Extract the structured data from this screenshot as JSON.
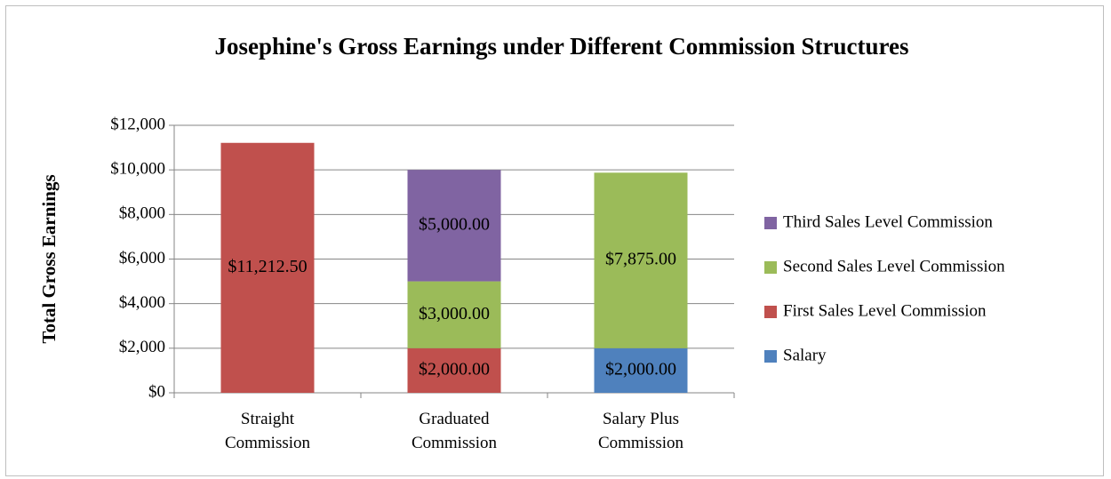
{
  "chart_data": {
    "type": "stacked_bar",
    "title": "Josephine's Gross Earnings under Different Commission Structures",
    "y_label": "Total Gross Earnings",
    "categories": [
      "Straight Commission",
      "Graduated Commission",
      "Salary Plus Commission"
    ],
    "series": [
      {
        "name": "Salary",
        "color": "#4f81bd",
        "values": [
          null,
          null,
          2000
        ],
        "value_labels": [
          null,
          null,
          "$2,000.00"
        ]
      },
      {
        "name": "First Sales Level Commission",
        "color": "#c0504d",
        "values": [
          11212.5,
          2000,
          null
        ],
        "value_labels": [
          "$11,212.50",
          "$2,000.00",
          null
        ]
      },
      {
        "name": "Second Sales Level Commission",
        "color": "#9bbb59",
        "values": [
          null,
          3000,
          7875
        ],
        "value_labels": [
          null,
          "$3,000.00",
          "$7,875.00"
        ]
      },
      {
        "name": "Third Sales Level Commission",
        "color": "#8064a2",
        "values": [
          null,
          5000,
          null
        ],
        "value_labels": [
          null,
          "$5,000.00",
          null
        ]
      }
    ],
    "ylim": [
      0,
      12000
    ],
    "yticks": [
      {
        "value": 0,
        "label": "$0"
      },
      {
        "value": 2000,
        "label": "$2,000"
      },
      {
        "value": 4000,
        "label": "$4,000"
      },
      {
        "value": 6000,
        "label": "$6,000"
      },
      {
        "value": 8000,
        "label": "$8,000"
      },
      {
        "value": 10000,
        "label": "$10,000"
      },
      {
        "value": 12000,
        "label": "$12,000"
      }
    ],
    "grid": true,
    "legend": "right"
  }
}
